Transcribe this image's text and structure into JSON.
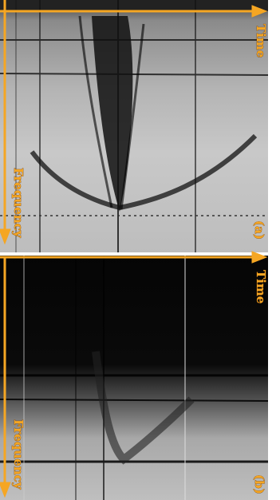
{
  "panels": [
    {
      "x_axis": "Time",
      "y_axis": "Frequency",
      "label": "(a)"
    },
    {
      "x_axis": "Time",
      "y_axis": "Frequency",
      "label": "(b)"
    }
  ]
}
